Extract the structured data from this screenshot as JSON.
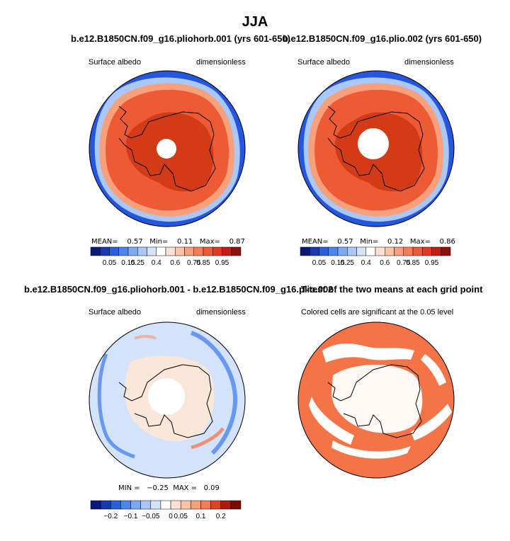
{
  "figure": {
    "title": "JJA"
  },
  "panels": [
    {
      "id": "p1",
      "title": "b.e12.B1850CN.f09_g16.pliohorb.001 (yrs 601-650)",
      "left_label": "Surface albedo",
      "right_label": "dimensionless",
      "stats": {
        "mean_label": "MEAN=",
        "mean": "0.57",
        "min_label": "Min=",
        "min": "0.11",
        "max_label": "Max=",
        "max": "0.87"
      },
      "colorbar": {
        "colors": [
          "#0a1a7a",
          "#1737b3",
          "#2a5fe0",
          "#4b86f0",
          "#7aaaf5",
          "#a9c8f7",
          "#d4e3fa",
          "#ffffff",
          "#fde1d3",
          "#fbc2a6",
          "#f8a07c",
          "#f47d55",
          "#ee5a33",
          "#e03a1f",
          "#c21f12",
          "#8f0f0a"
        ],
        "ticks": [
          "0.05",
          "0.15",
          "0.25",
          "0.4",
          "0.6",
          "0.75",
          "0.85",
          "0.95"
        ]
      }
    },
    {
      "id": "p2",
      "title": "b.e12.B1850CN.f09_g16.plio.002 (yrs 601-650)",
      "left_label": "Surface albedo",
      "right_label": "dimensionless",
      "stats": {
        "mean_label": "MEAN=",
        "mean": "0.57",
        "min_label": "Min=",
        "min": "0.12",
        "max_label": "Max=",
        "max": "0.86"
      },
      "colorbar": {
        "colors": [
          "#0a1a7a",
          "#1737b3",
          "#2a5fe0",
          "#4b86f0",
          "#7aaaf5",
          "#a9c8f7",
          "#d4e3fa",
          "#ffffff",
          "#fde1d3",
          "#fbc2a6",
          "#f8a07c",
          "#f47d55",
          "#ee5a33",
          "#e03a1f",
          "#c21f12",
          "#8f0f0a"
        ],
        "ticks": [
          "0.05",
          "0.15",
          "0.25",
          "0.4",
          "0.6",
          "0.75",
          "0.85",
          "0.95"
        ]
      }
    },
    {
      "id": "p3",
      "title": "b.e12.B1850CN.f09_g16.pliohorb.001 - b.e12.B1850CN.f09_g16.plio.002",
      "left_label": "Surface albedo",
      "right_label": "dimensionless",
      "stats": {
        "min_label": "MIN =",
        "min": "−0.25",
        "max_label": "MAX =",
        "max": "0.09"
      },
      "colorbar": {
        "colors": [
          "#0a1a7a",
          "#1737b3",
          "#2a5fe0",
          "#4b86f0",
          "#7aaaf5",
          "#a9c8f7",
          "#d4e3fa",
          "#ffffff",
          "#fde1d3",
          "#fbc2a6",
          "#f8a07c",
          "#f47d55",
          "#e0431f",
          "#b01a0e",
          "#7a0a05"
        ],
        "ticks": [
          "−0.2",
          "−0.1",
          "−0.05",
          "0",
          "0.05",
          "0.1",
          "0.2"
        ]
      }
    },
    {
      "id": "p4",
      "title": "T-test of the two means at each grid point",
      "left_label": "Colored cells are significant at the 0.05 level"
    }
  ],
  "colors": {
    "ocean_blue": "#2456e0",
    "ice_edge_light": "#a9c8f7",
    "albedo_high": "#ee5a33",
    "albedo_peak": "#d23b16",
    "diff_bg": "#d4e3fa",
    "diff_land": "#fbe7da",
    "significant": "#f47448"
  }
}
